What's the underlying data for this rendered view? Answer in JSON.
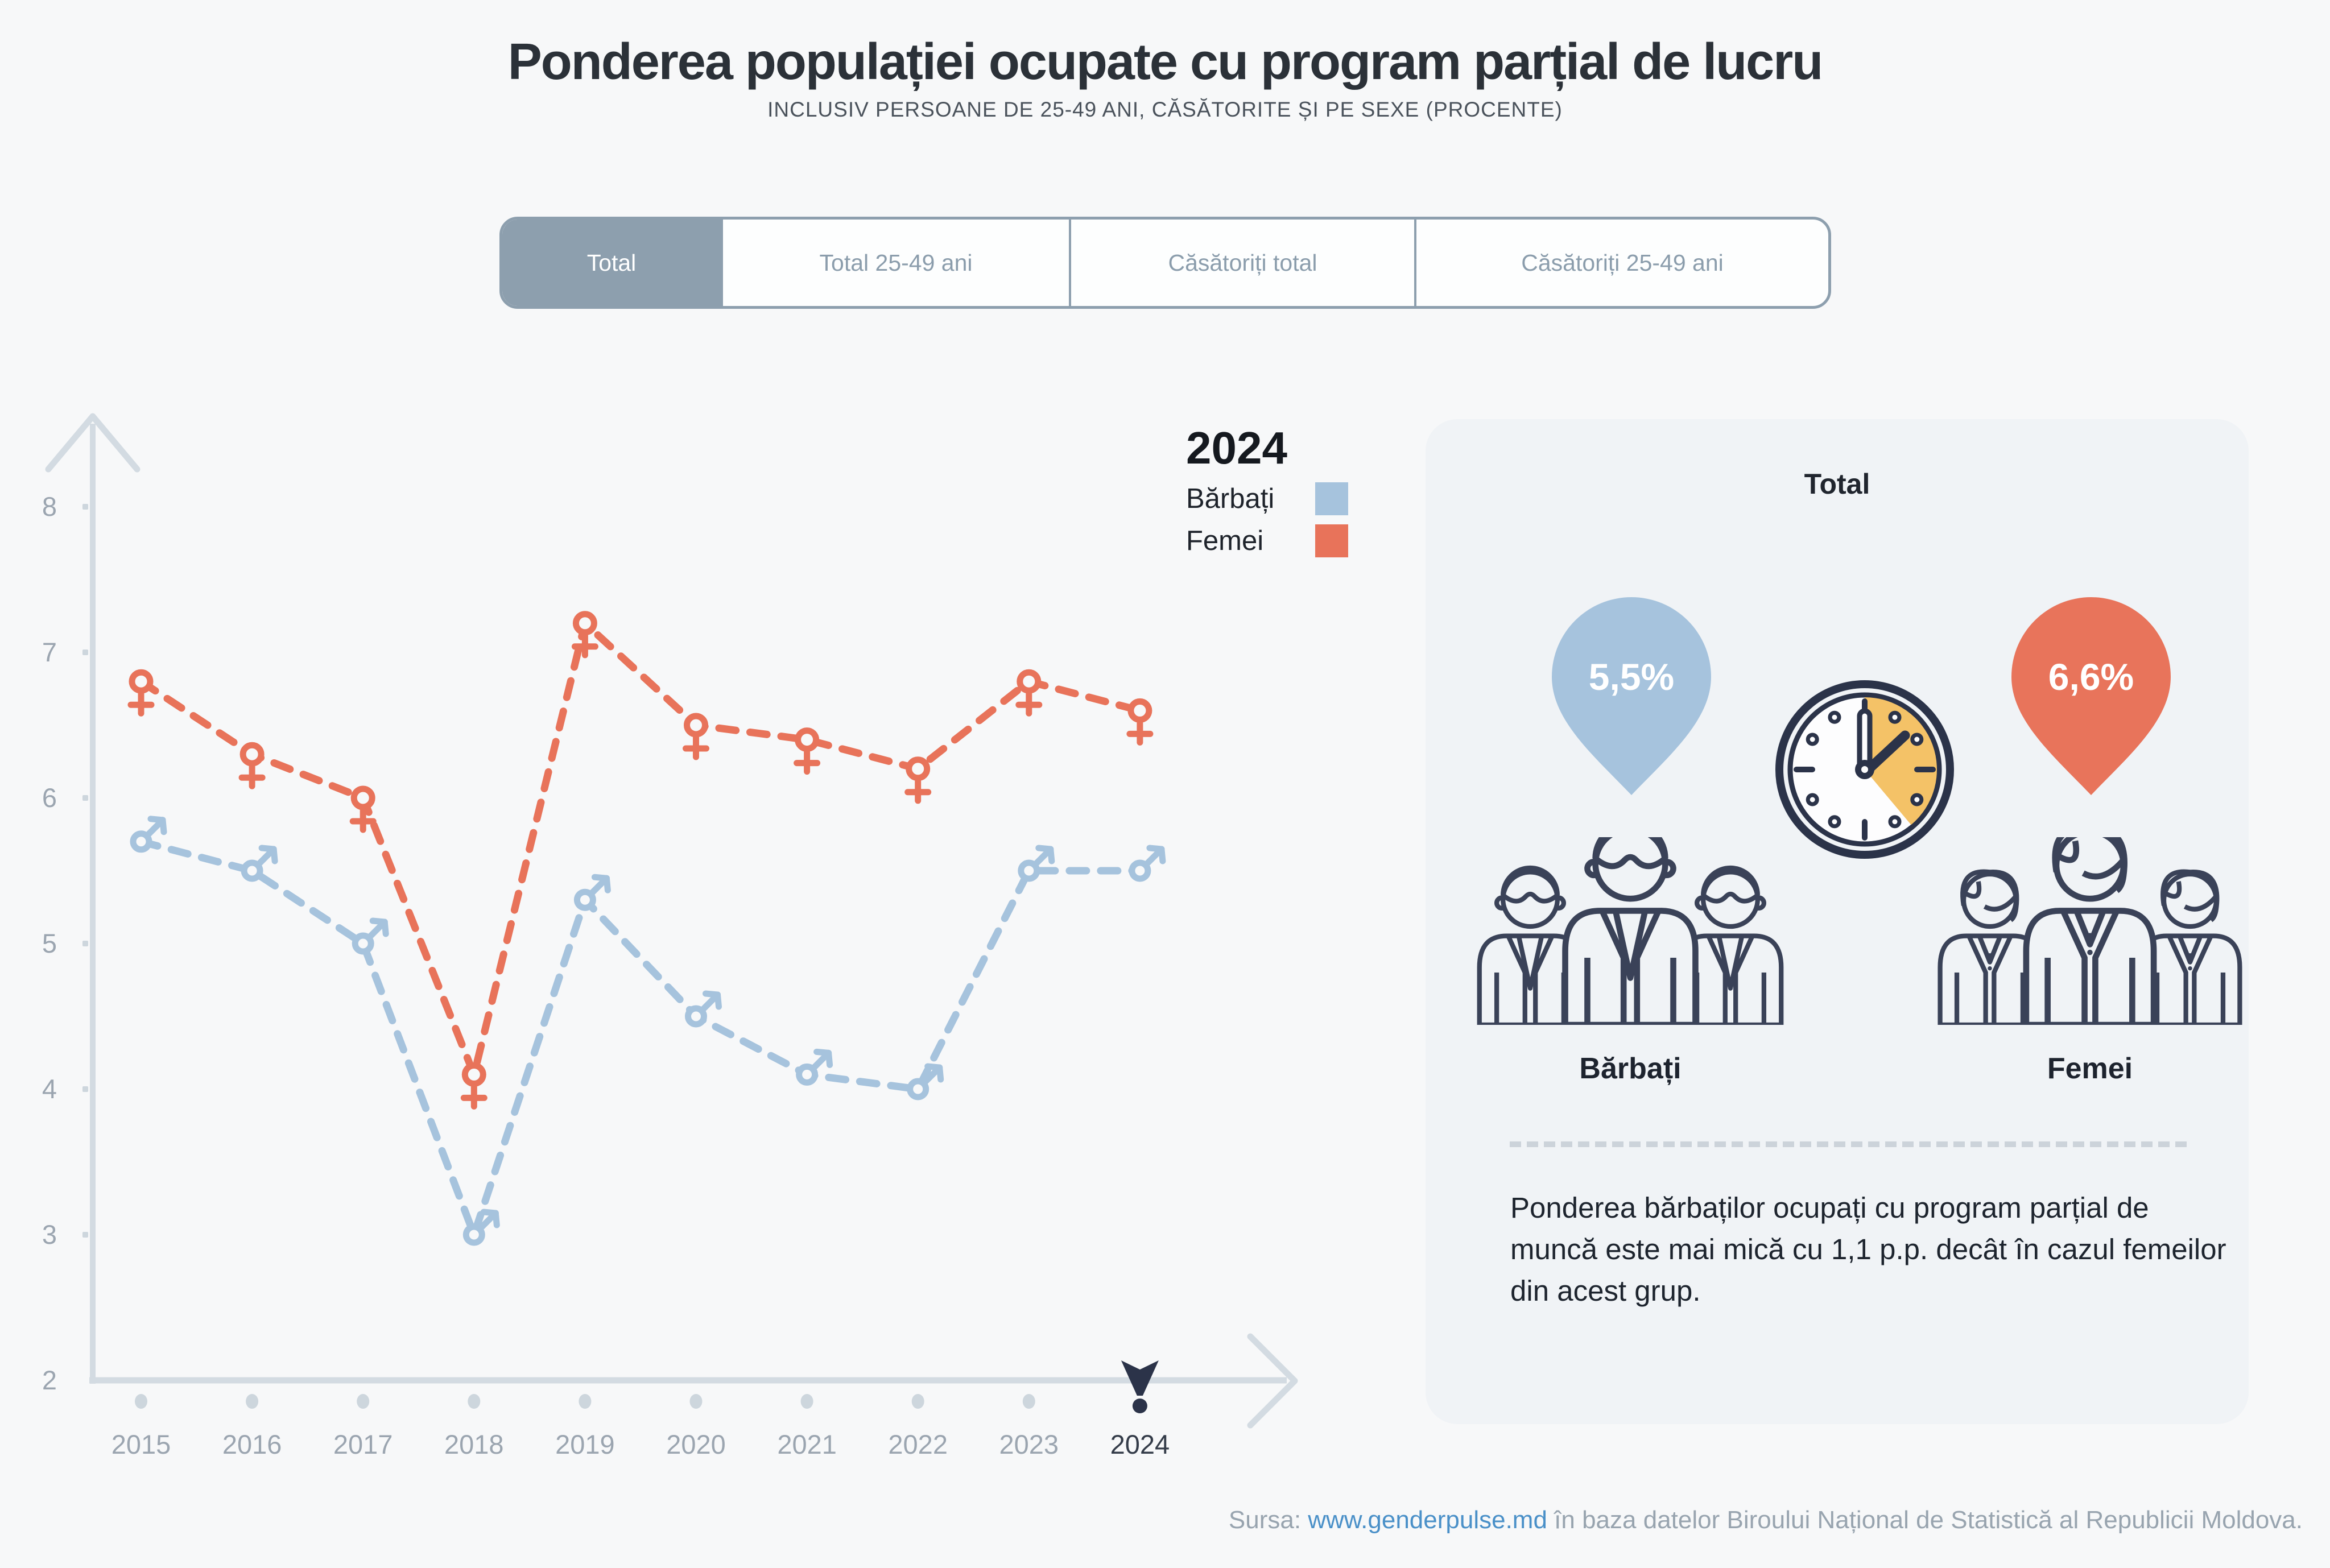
{
  "page": {
    "title": "Ponderea populației ocupate cu program parțial de lucru",
    "subtitle": "INCLUSIV PERSOANE DE 25-49 ANI, CĂSĂTORITE ȘI PE SEXE (PROCENTE)"
  },
  "tabs": {
    "items": [
      {
        "label": "Total",
        "selected": true
      },
      {
        "label": "Total 25-49 ani",
        "selected": false
      },
      {
        "label": "Căsătoriți total",
        "selected": false
      },
      {
        "label": "Căsătoriți 25-49 ani",
        "selected": false
      }
    ]
  },
  "chart_data": {
    "type": "line",
    "x": [
      "2015",
      "2016",
      "2017",
      "2018",
      "2019",
      "2020",
      "2021",
      "2022",
      "2023",
      "2024"
    ],
    "series": [
      {
        "name": "Bărbați",
        "marker": "male",
        "color": "#a6c3dd",
        "values": [
          5.7,
          5.5,
          5.0,
          3.0,
          5.3,
          4.5,
          4.1,
          4.0,
          5.5,
          5.5
        ]
      },
      {
        "name": "Femei",
        "marker": "female",
        "color": "#e8735a",
        "values": [
          6.8,
          6.3,
          6.0,
          4.1,
          7.2,
          6.5,
          6.4,
          6.2,
          6.8,
          6.6
        ]
      }
    ],
    "ylim": [
      2,
      8
    ],
    "yticks": [
      2,
      3,
      4,
      5,
      6,
      7,
      8
    ],
    "grid": false,
    "line_style": "dashed",
    "legend_position": "top-right",
    "legend_year": "2024",
    "highlight_year": "2024",
    "title": "Ponderea populației ocupate cu program parțial de lucru",
    "xlabel": "",
    "ylabel": ""
  },
  "panel": {
    "title": "Total",
    "men": {
      "value": "5,5%",
      "label": "Bărbați",
      "color": "#a6c3dd"
    },
    "women": {
      "value": "6,6%",
      "label": "Femei",
      "color": "#e8745b"
    },
    "note": "Ponderea bărbaților ocupați cu program parțial de muncă este mai mică cu 1,1 p.p. decât în cazul femeilor din acest grup."
  },
  "footer": {
    "prefix": "Sursa: ",
    "link": "www.genderpulse.md",
    "suffix": " în baza datelor Biroului Național de Statistică al Republicii Moldova."
  },
  "colors": {
    "accent_tab": "#8d9fae",
    "navy": "#2b3349",
    "yellow_wedge": "#f4c267",
    "axis": "#d3dbe2",
    "tick": "#cdd6dd",
    "background": "#f7f8f9",
    "panel_background": "#f0f3f6"
  }
}
